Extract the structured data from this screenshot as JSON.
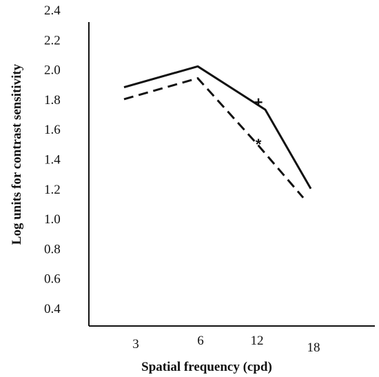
{
  "chart_data": {
    "type": "line",
    "xlabel": "Spatial frequency (cpd)",
    "ylabel": "Log units for contrast sensitivity",
    "categories": [
      "3",
      "6",
      "12",
      "18"
    ],
    "y_ticks": [
      "2.4",
      "2.2",
      "2.0",
      "1.8",
      "1.6",
      "1.4",
      "1.2",
      "1.0",
      "0.8",
      "0.6",
      "0.4"
    ],
    "y_tick_values": [
      2.4,
      2.2,
      2.0,
      1.8,
      1.6,
      1.4,
      1.2,
      1.0,
      0.8,
      0.6,
      0.4
    ],
    "ylim": [
      0.2,
      2.4
    ],
    "grid": false,
    "legend": "none",
    "series": [
      {
        "style": "solid",
        "values": [
          1.88,
          2.02,
          1.73,
          1.2
        ]
      },
      {
        "style": "dashed",
        "values": [
          1.8,
          1.94,
          1.5,
          1.14
        ]
      }
    ],
    "annotations": [
      {
        "text": "+",
        "category": "12",
        "y": 1.78
      },
      {
        "text": "*",
        "category": "12",
        "y": 1.5
      }
    ]
  }
}
